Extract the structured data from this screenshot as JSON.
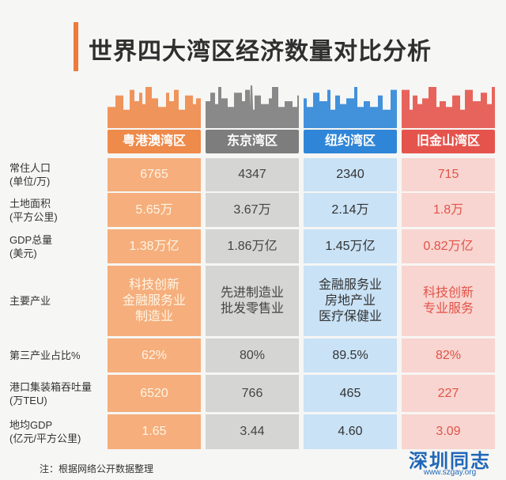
{
  "chart_data": {
    "type": "table",
    "title": "世界四大湾区经济数量对比分析",
    "columns": [
      {
        "name": "粤港澳湾区",
        "color": "#ee8a4a",
        "cell_color": "#f5ae7c"
      },
      {
        "name": "东京湾区",
        "color": "#7d7d7d",
        "cell_color": "#d5d5d3"
      },
      {
        "name": "纽约湾区",
        "color": "#2f86d8",
        "cell_color": "#c9e2f6"
      },
      {
        "name": "旧金山湾区",
        "color": "#e5544c",
        "cell_color": "#f8d5d0"
      }
    ],
    "rows": [
      {
        "label": [
          "常住人口",
          "(单位/万)"
        ],
        "values": [
          "6765",
          "4347",
          "2340",
          "715"
        ]
      },
      {
        "label": [
          "土地面积",
          "(平方公里)"
        ],
        "values": [
          "5.65万",
          "3.67万",
          "2.14万",
          "1.8万"
        ]
      },
      {
        "label": [
          "GDP总量",
          "(美元)"
        ],
        "values": [
          "1.38万亿",
          "1.86万亿",
          "1.45万亿",
          "0.82万亿"
        ]
      },
      {
        "label": [
          "主要产业"
        ],
        "values": [
          [
            "科技创新",
            "金融服务业",
            "制造业"
          ],
          [
            "先进制造业",
            "批发零售业"
          ],
          [
            "金融服务业",
            "房地产业",
            "医疗保健业"
          ],
          [
            "科技创新",
            "专业服务"
          ]
        ]
      },
      {
        "label": [
          "第三产业占比%"
        ],
        "values": [
          "62%",
          "80%",
          "89.5%",
          "82%"
        ]
      },
      {
        "label": [
          "港口集装箱吞吐量",
          "(万TEU)"
        ],
        "values": [
          "6520",
          "766",
          "465",
          "227"
        ]
      },
      {
        "label": [
          "地均GDP",
          "(亿元/平方公里)"
        ],
        "values": [
          "1.65",
          "3.44",
          "4.60",
          "3.09"
        ]
      }
    ],
    "numeric": {
      "population_10k": [
        6765,
        4347,
        2340,
        715
      ],
      "area_10k_km2": [
        5.65,
        3.67,
        2.14,
        1.8
      ],
      "gdp_trillion_usd": [
        1.38,
        1.86,
        1.45,
        0.82
      ],
      "tertiary_share_pct": [
        62,
        80,
        89.5,
        82
      ],
      "port_throughput_10k_teu": [
        6520,
        766,
        465,
        227
      ],
      "gdp_per_area": [
        1.65,
        3.44,
        4.6,
        3.09
      ]
    }
  },
  "footnote": "注：根据网络公开数据整理",
  "logo": {
    "text": "深圳同志",
    "url": "www.szgay.org"
  }
}
